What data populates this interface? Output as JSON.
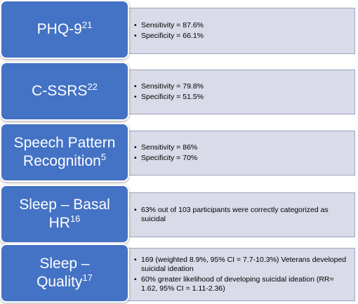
{
  "rows": [
    {
      "label_lines": [
        "PHQ-9"
      ],
      "ref": "21",
      "bullets": [
        "Sensitivity = 87.6%",
        "Specificity = 66.1%"
      ]
    },
    {
      "label_lines": [
        "C-SSRS"
      ],
      "ref": "22",
      "bullets": [
        "Sensitivity = 79.8%",
        "Specificity = 51.5%"
      ]
    },
    {
      "label_lines": [
        "Speech Pattern",
        "Recognition"
      ],
      "ref": "5",
      "bullets": [
        "Sensitivity = 86%",
        "Specificity = 70%"
      ]
    },
    {
      "label_lines": [
        "Sleep – Basal",
        "HR"
      ],
      "ref": "16",
      "bullets": [
        "63% out of 103 participants were correctly categorized as suicidal"
      ]
    },
    {
      "label_lines": [
        "Sleep –",
        "Quality"
      ],
      "ref": "17",
      "bullets": [
        "169 (weighted 8.9%, 95% CI = 7.7-10.3%) Veterans developed suicidal ideation",
        "60% greater likelihood of developing suicidal ideation (RR= 1.62, 95% CI = 1.11-2.36)"
      ]
    }
  ],
  "colors": {
    "label_fill": "#4472c4",
    "detail_fill": "#d9dbe8",
    "detail_border": "#9ca3bd"
  }
}
